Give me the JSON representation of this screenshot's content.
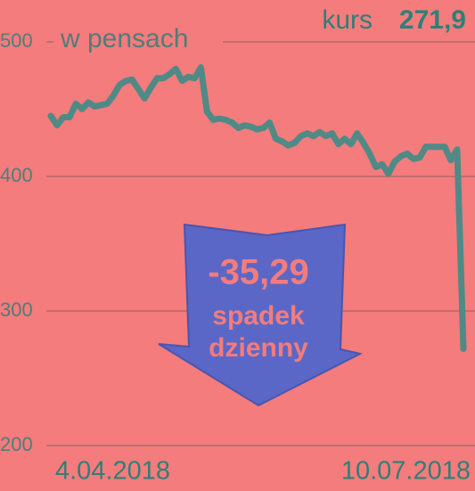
{
  "chart_data": {
    "type": "line",
    "y_label": "w pensach",
    "price_label": "kurs",
    "price_value": "271,9",
    "annotation": {
      "change": "-35,29",
      "line1": "spadek",
      "line2": "dzienny"
    },
    "categories": [
      "4.04.2018",
      null,
      null,
      null,
      null,
      null,
      null,
      null,
      null,
      null,
      null,
      null,
      null,
      null,
      null,
      null,
      null,
      null,
      null,
      null,
      null,
      null,
      null,
      null,
      null,
      null,
      null,
      null,
      null,
      null,
      null,
      null,
      null,
      null,
      null,
      null,
      null,
      null,
      null,
      null,
      null,
      null,
      null,
      null,
      null,
      null,
      null,
      null,
      null,
      null,
      null,
      null,
      null,
      null,
      null,
      null,
      null,
      null,
      null,
      null,
      null,
      null,
      null,
      null,
      null,
      null,
      "10.07.2018"
    ],
    "values": [
      445,
      438,
      444,
      444,
      454,
      450,
      455,
      452,
      453,
      454,
      460,
      468,
      471,
      472,
      465,
      458,
      466,
      473,
      473,
      476,
      480,
      471,
      474,
      473,
      481,
      448,
      442,
      443,
      442,
      440,
      436,
      438,
      437,
      435,
      436,
      440,
      428,
      426,
      423,
      425,
      430,
      432,
      430,
      433,
      430,
      432,
      424,
      428,
      424,
      432,
      425,
      417,
      407,
      409,
      402,
      411,
      415,
      417,
      413,
      414,
      422,
      422,
      422,
      422,
      412,
      420,
      271.9
    ],
    "color": "#4f8a87",
    "ylim": [
      200,
      500
    ],
    "yticks": [
      200,
      300,
      400,
      500
    ],
    "grid": true
  }
}
